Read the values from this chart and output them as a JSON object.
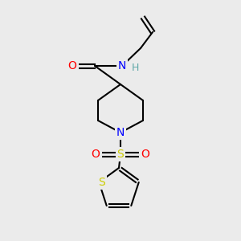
{
  "bg_color": "#ebebeb",
  "bond_color": "#000000",
  "bond_width": 1.5,
  "atom_colors": {
    "N": "#0000ff",
    "O": "#ff0000",
    "S_sulfonyl": "#cccc00",
    "S_thio": "#cccc00",
    "H": "#5fa8a8",
    "C": "#000000"
  },
  "font_size": 9,
  "fig_size": [
    3.0,
    3.0
  ],
  "dpi": 100,
  "xlim": [
    0,
    300
  ],
  "ylim": [
    0,
    300
  ]
}
